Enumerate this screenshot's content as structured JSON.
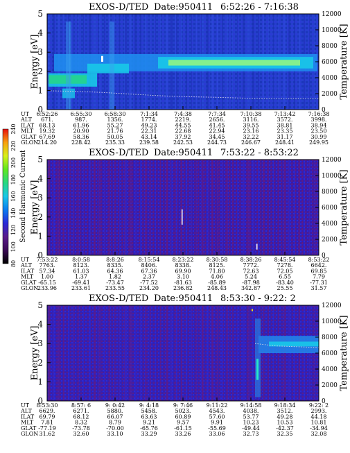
{
  "chart_data": [
    {
      "type": "heatmap",
      "title": "EXOS-D/TED",
      "date_label": "Date:950411",
      "time_range": "6:52:26 - 7:16:38",
      "ylabel": "Energy [eV]",
      "ylabel_right": "Temperature [K]",
      "ylim": [
        0,
        5
      ],
      "ylim_right": [
        0,
        12000
      ],
      "yticks": [
        "0",
        "1",
        "2",
        "3",
        "4",
        "5"
      ],
      "yticks_right": [
        "0",
        "2000",
        "4000",
        "6000",
        "8000",
        "10000",
        "12000"
      ],
      "table": {
        "row_labels": [
          "UT",
          "ALT",
          "ILAT",
          "MLT",
          "GLAT",
          "GLON"
        ],
        "columns": [
          [
            "6:52:26",
            "671.",
            "68.13",
            "19.32",
            "67.69",
            "214.20"
          ],
          [
            "6:55:30",
            "987.",
            "61.96",
            "20.90",
            "58.36",
            "228.42"
          ],
          [
            "6:58:30",
            "1356.",
            "55.27",
            "21.76",
            "50.05",
            "235.33"
          ],
          [
            "7:1:34",
            "1774.",
            "49.23",
            "22.31",
            "43.14",
            "239.58"
          ],
          [
            "7:4:38",
            "2219.",
            "44.55",
            "22.68",
            "37.92",
            "242.53"
          ],
          [
            "7:7:34",
            "2656.",
            "41.45",
            "22.94",
            "34.45",
            "244.73"
          ],
          [
            "7:10:38",
            "3116.",
            "39.55",
            "23.16",
            "32.22",
            "246.67"
          ],
          [
            "7:13:42",
            "3572.",
            "38.81",
            "23.35",
            "31.17",
            "248.41"
          ],
          [
            "7:16:38",
            "3998.",
            "38.94",
            "23.50",
            "30.99",
            "249.95"
          ]
        ]
      }
    },
    {
      "type": "heatmap",
      "title": "EXOS-D/TED",
      "date_label": "Date:950411",
      "time_range": "7:53:22 - 8:53:22",
      "ylabel": "Energy [eV]",
      "ylabel_right": "Temperature [K]",
      "ylim": [
        0,
        5
      ],
      "ylim_right": [
        0,
        12000
      ],
      "yticks": [
        "0",
        "1",
        "2",
        "3",
        "4",
        "5"
      ],
      "yticks_right": [
        "0",
        "2000",
        "4000",
        "6000",
        "8000",
        "10000",
        "12000"
      ],
      "table": {
        "row_labels": [
          "UT",
          "ALT",
          "ILAT",
          "MLT",
          "GLAT",
          "GLON"
        ],
        "columns": [
          [
            "7:53:22",
            "7763.",
            "57.34",
            "1.00",
            "-65.15",
            "233.96"
          ],
          [
            "8:0:58",
            "8123.",
            "61.03",
            "1.37",
            "-69.41",
            "233.61"
          ],
          [
            "8:8:26",
            "8335.",
            "64.36",
            "1.82",
            "-73.47",
            "233.55"
          ],
          [
            "8:15:54",
            "8406.",
            "67.36",
            "2.37",
            "-77.52",
            "234.20"
          ],
          [
            "8:23:22",
            "8338.",
            "69.90",
            "3.10",
            "-81.63",
            "236.82"
          ],
          [
            "8:30:58",
            "8125.",
            "71.80",
            "4.06",
            "-85.89",
            "248.43"
          ],
          [
            "8:38:26",
            "7772.",
            "72.63",
            "5.24",
            "-87.98",
            "342.87"
          ],
          [
            "8:45:54",
            "7278.",
            "72.05",
            "6.55",
            "-83.40",
            "25.55"
          ],
          [
            "8:53:22",
            "6642.",
            "69.85",
            "7.79",
            "-77.31",
            "31.57"
          ]
        ]
      }
    },
    {
      "type": "heatmap",
      "title": "EXOS-D/TED",
      "date_label": "Date:950411",
      "time_range": "8:53:30 - 9:22: 2",
      "ylabel": "Energy [eV]",
      "ylabel_right": "Temperature [K]",
      "ylim": [
        0,
        5
      ],
      "ylim_right": [
        0,
        12000
      ],
      "yticks": [
        "0",
        "1",
        "2",
        "3",
        "4",
        "5"
      ],
      "yticks_right": [
        "0",
        "2000",
        "4000",
        "6000",
        "8000",
        "10000",
        "12000"
      ],
      "table": {
        "row_labels": [
          "UT",
          "ALT",
          "ILAT",
          "MLT",
          "GLAT",
          "GLON"
        ],
        "columns": [
          [
            "8:53:30",
            "6629.",
            "69.79",
            "7.81",
            "-77.19",
            "31.62"
          ],
          [
            "8:57: 6",
            "6271.",
            "68.12",
            "8.32",
            "-73.78",
            "32.60"
          ],
          [
            "9: 0:42",
            "5880.",
            "66.07",
            "8.79",
            "-70.00",
            "33.10"
          ],
          [
            "9: 4:18",
            "5458.",
            "63.63",
            "9.21",
            "-65.76",
            "33.29"
          ],
          [
            "9: 7:46",
            "5023.",
            "60.89",
            "9.57",
            "-61.15",
            "33.26"
          ],
          [
            "9:11:22",
            "4543.",
            "57.60",
            "9.91",
            "-55.69",
            "33.06"
          ],
          [
            "9:14:58",
            "4038.",
            "53.77",
            "10.23",
            "-49.44",
            "32.73"
          ],
          [
            "9:18:34",
            "3512.",
            "49.28",
            "10.53",
            "-42.37",
            "32.35"
          ],
          [
            "9:22: 2",
            "2993.",
            "44.18",
            "10.81",
            "-34.94",
            "32.08"
          ]
        ]
      }
    }
  ],
  "colorbar": {
    "label": "Second Harmonic Current",
    "ticks": [
      "80",
      "100",
      "120",
      "140",
      "160",
      "180",
      "200",
      "220",
      "240"
    ],
    "colors": [
      "#000000",
      "#3b0a55",
      "#5a1c8c",
      "#2a2ad8",
      "#0a7cf0",
      "#18c8e8",
      "#27d880",
      "#5fe81e",
      "#d8f018",
      "#f8a010",
      "#e81010"
    ]
  },
  "colors": {
    "background_panel1": "#1e3ec8",
    "background_panel2": "#3420a8",
    "band_bright": "#30e8c8",
    "band_core": "#a8ff70",
    "trace": "#d8d8e8"
  }
}
